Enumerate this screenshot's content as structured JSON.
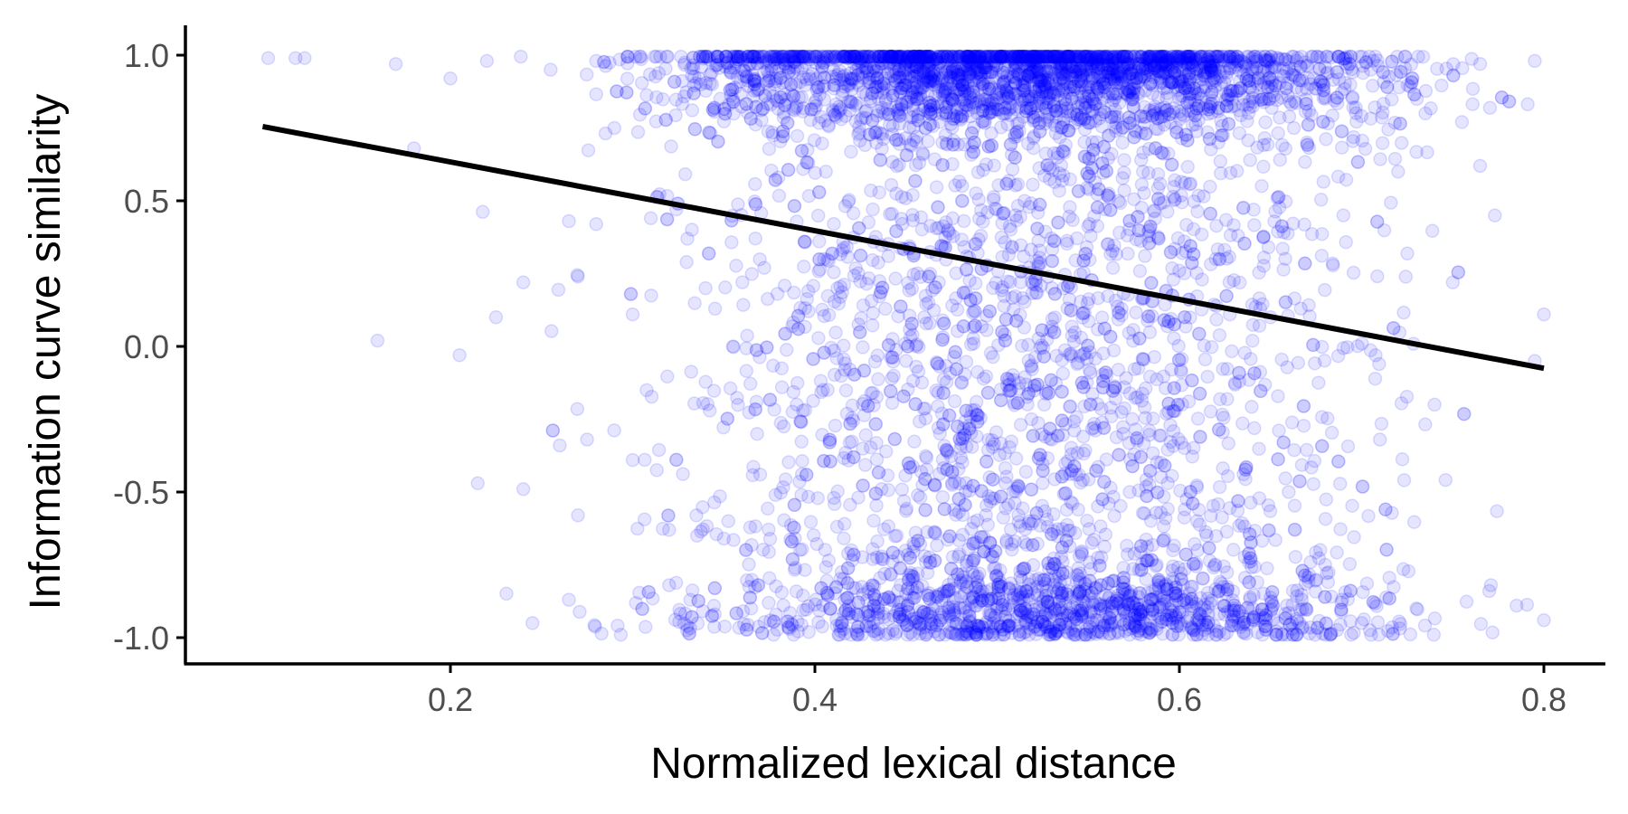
{
  "chart_data": {
    "type": "scatter",
    "title": "",
    "xlabel": "Normalized lexical distance",
    "ylabel": "Information curve similarity",
    "xlim": [
      0.07,
      0.83
    ],
    "ylim": [
      -1.1,
      1.08
    ],
    "x_ticks": [
      {
        "value": 0.2,
        "label": "0.2"
      },
      {
        "value": 0.4,
        "label": "0.4"
      },
      {
        "value": 0.6,
        "label": "0.6"
      },
      {
        "value": 0.8,
        "label": "0.8"
      }
    ],
    "y_ticks": [
      {
        "value": -1.0,
        "label": "-1.0"
      },
      {
        "value": -0.5,
        "label": "-0.5"
      },
      {
        "value": 0.0,
        "label": "0.0"
      },
      {
        "value": 0.5,
        "label": "0.5"
      },
      {
        "value": 1.0,
        "label": "1.0"
      }
    ],
    "grid": false,
    "legend": "none",
    "point_color": "#0000ff",
    "point_opacity": 0.1,
    "fit_line_color": "#000000",
    "fit_line": {
      "x": [
        0.097,
        0.8
      ],
      "y": [
        0.755,
        -0.075
      ]
    },
    "series": [
      {
        "points": [
          [
            0.1,
            0.99
          ],
          [
            0.115,
            0.99
          ],
          [
            0.12,
            0.99
          ],
          [
            0.16,
            0.02
          ],
          [
            0.17,
            0.97
          ],
          [
            0.18,
            0.68
          ],
          [
            0.2,
            0.92
          ],
          [
            0.205,
            -0.03
          ],
          [
            0.215,
            -0.47
          ],
          [
            0.22,
            0.98
          ],
          [
            0.225,
            0.1
          ],
          [
            0.24,
            0.22
          ],
          [
            0.24,
            -0.49
          ],
          [
            0.245,
            -0.95
          ],
          [
            0.255,
            0.95
          ],
          [
            0.26,
            -0.34
          ],
          [
            0.265,
            -0.87
          ],
          [
            0.265,
            0.43
          ],
          [
            0.27,
            -0.58
          ],
          [
            0.27,
            0.24
          ],
          [
            0.275,
            -0.32
          ],
          [
            0.28,
            0.42
          ],
          [
            0.28,
            0.98
          ],
          [
            0.29,
            0.75
          ],
          [
            0.3,
            0.11
          ],
          [
            0.3,
            -0.39
          ],
          [
            0.31,
            0.44
          ],
          [
            0.32,
            -0.63
          ],
          [
            0.32,
            -0.82
          ],
          [
            0.33,
            0.37
          ],
          [
            0.33,
            -0.96
          ],
          [
            0.335,
            -0.58
          ],
          [
            0.34,
            0.2
          ],
          [
            0.345,
            -0.92
          ],
          [
            0.35,
            -0.66
          ],
          [
            0.355,
            0.0
          ],
          [
            0.365,
            -0.9
          ],
          [
            0.37,
            -0.44
          ],
          [
            0.38,
            0.58
          ],
          [
            0.39,
            -0.2
          ],
          [
            0.405,
            0.3
          ],
          [
            0.42,
            -0.7
          ],
          [
            0.435,
            0.85
          ],
          [
            0.45,
            -0.85
          ],
          [
            0.46,
            0.1
          ],
          [
            0.47,
            0.7
          ],
          [
            0.48,
            -0.35
          ],
          [
            0.49,
            0.95
          ],
          [
            0.5,
            -0.9
          ],
          [
            0.51,
            0.45
          ],
          [
            0.52,
            -0.6
          ],
          [
            0.53,
            0.2
          ],
          [
            0.54,
            -0.95
          ],
          [
            0.55,
            0.9
          ],
          [
            0.56,
            -0.1
          ],
          [
            0.57,
            -0.85
          ],
          [
            0.58,
            0.6
          ],
          [
            0.59,
            -0.4
          ],
          [
            0.6,
            0.85
          ],
          [
            0.61,
            -0.7
          ],
          [
            0.62,
            0.3
          ],
          [
            0.63,
            -0.9
          ],
          [
            0.64,
            0.95
          ],
          [
            0.65,
            0.1
          ],
          [
            0.66,
            -0.5
          ],
          [
            0.67,
            0.7
          ],
          [
            0.68,
            -0.75
          ],
          [
            0.69,
            0.45
          ],
          [
            0.7,
            -0.95
          ],
          [
            0.705,
            0.95
          ],
          [
            0.71,
            -0.32
          ],
          [
            0.72,
            0.6
          ],
          [
            0.73,
            -0.9
          ],
          [
            0.735,
            0.8
          ],
          [
            0.74,
            -0.2
          ],
          [
            0.75,
            0.22
          ],
          [
            0.765,
            0.62
          ],
          [
            0.765,
            0.97
          ],
          [
            0.77,
            -0.84
          ],
          [
            0.785,
            -0.89
          ],
          [
            0.795,
            0.98
          ],
          [
            0.8,
            -0.94
          ],
          [
            0.8,
            0.11
          ],
          [
            0.795,
            -0.05
          ]
        ],
        "x_center": 0.52,
        "x_spread": 0.095,
        "density_note_count": 6000
      }
    ]
  }
}
